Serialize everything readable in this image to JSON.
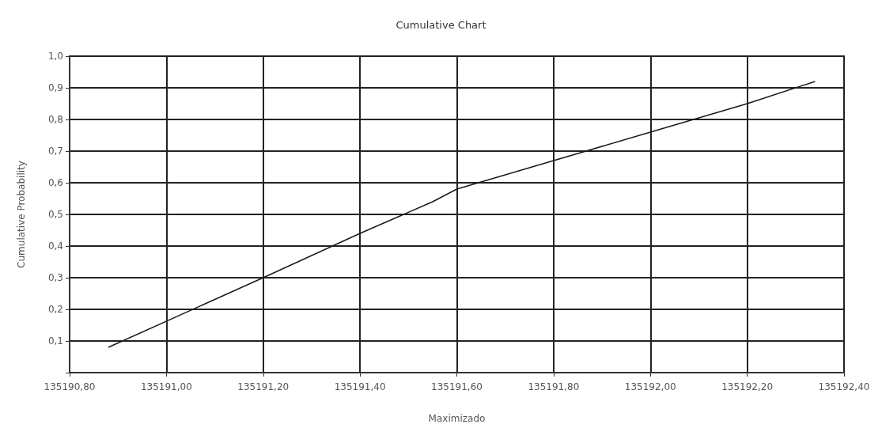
{
  "chart_data": {
    "type": "line",
    "title": "Cumulative Chart",
    "xlabel": "Maximizado",
    "ylabel": "Cumulative Probability",
    "x": [
      135190.88,
      135191.2,
      135191.4,
      135191.55,
      135191.6,
      135191.8,
      135192.0,
      135192.2,
      135192.34
    ],
    "series": [
      {
        "color": "#1a1a1a",
        "values": [
          0.08,
          0.3,
          0.44,
          0.54,
          0.58,
          0.67,
          0.76,
          0.85,
          0.92
        ]
      }
    ],
    "xlim": [
      135190.8,
      135192.4
    ],
    "xticks": [
      {
        "value": 135190.8,
        "label": "135190,80"
      },
      {
        "value": 135191.0,
        "label": "135191,00"
      },
      {
        "value": 135191.2,
        "label": "135191,20"
      },
      {
        "value": 135191.4,
        "label": "135191,40"
      },
      {
        "value": 135191.6,
        "label": "135191,60"
      },
      {
        "value": 135191.8,
        "label": "135191,80"
      },
      {
        "value": 135192.0,
        "label": "135192,00"
      },
      {
        "value": 135192.2,
        "label": "135192,20"
      },
      {
        "value": 135192.4,
        "label": "135192,40"
      }
    ],
    "ylim": [
      0,
      1
    ],
    "yticks": [
      {
        "value": 0,
        "label": null
      },
      {
        "value": 0.1,
        "label": "0,1"
      },
      {
        "value": 0.2,
        "label": "0,2"
      },
      {
        "value": 0.3,
        "label": "0,3"
      },
      {
        "value": 0.4,
        "label": "0,4"
      },
      {
        "value": 0.5,
        "label": "0,5"
      },
      {
        "value": 0.6,
        "label": "0,6"
      },
      {
        "value": 0.7,
        "label": "0,7"
      },
      {
        "value": 0.8,
        "label": "0,8"
      },
      {
        "value": 0.9,
        "label": "0,9"
      },
      {
        "value": 1.0,
        "label": "1,0"
      }
    ],
    "grid": true,
    "marker": "none",
    "line_style": "solid"
  }
}
